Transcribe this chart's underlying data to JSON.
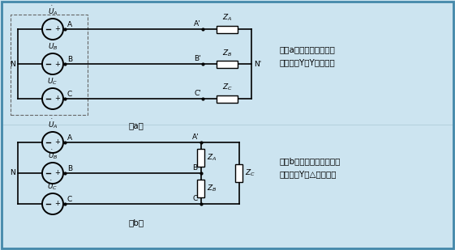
{
  "bg_color": "#cce4f0",
  "border_color": "#4488aa",
  "text_color": "#000000",
  "line_color": "#000000",
  "title_a_line1": "图（a）为星形电源与星",
  "title_a_line2": "形负载的Y－Y连接方式",
  "title_b_line1": "图（b）为星形电源与三角",
  "title_b_line2": "形负载的Y－△连接方式",
  "label_a": "（a）",
  "label_b": "（b）",
  "fig_w": 5.61,
  "fig_h": 3.09,
  "dpi": 100
}
